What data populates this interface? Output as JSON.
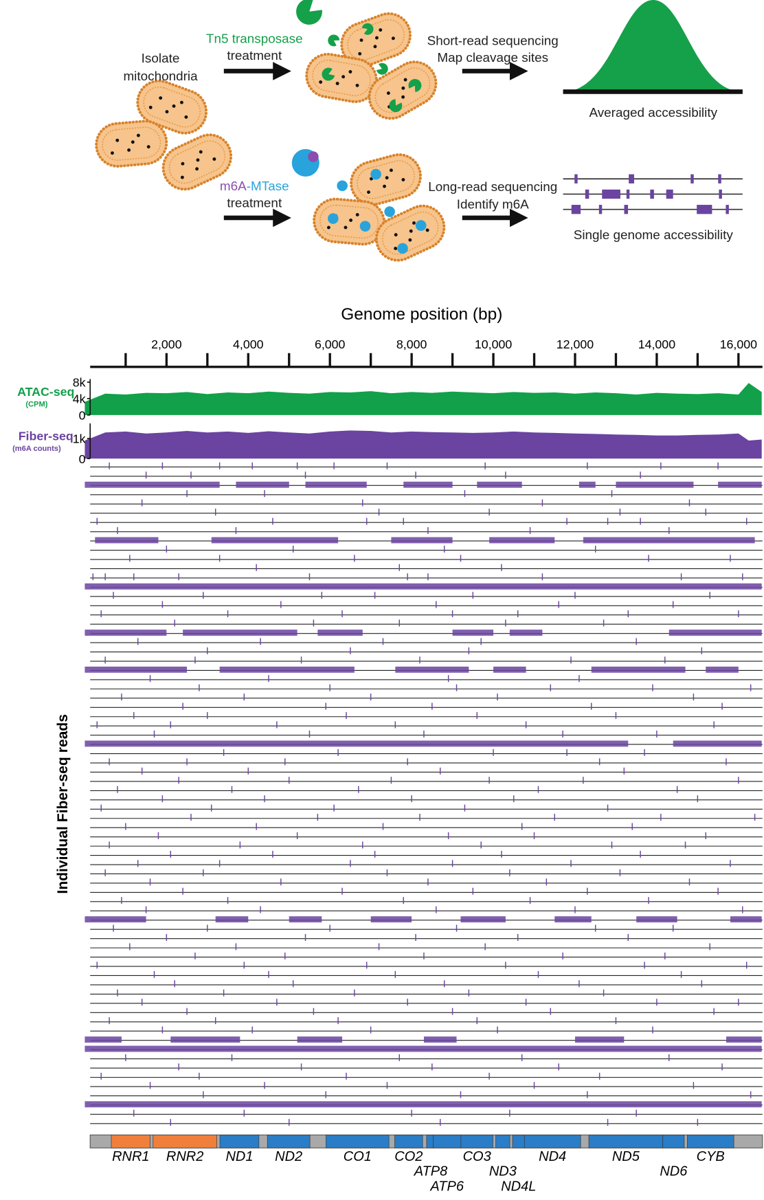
{
  "diagram": {
    "isolate": [
      "Isolate",
      "mitochondria"
    ],
    "tn5": "Tn5 transposase",
    "tn5_treatment": "treatment",
    "short_read": [
      "Short-read sequencing",
      "Map cleavage sites"
    ],
    "averaged": "Averaged accessibility",
    "mtase": [
      "m6A",
      "-MTase"
    ],
    "mtase_treatment": "treatment",
    "long_read": [
      "Long-read sequencing",
      "Identify m6A"
    ],
    "single": "Single genome accessibility"
  },
  "chart_data": {
    "type": "genome-tracks",
    "title": "Genome position (bp)",
    "xlim": [
      0,
      16569
    ],
    "xticks": [
      {
        "value": 2000,
        "label": "2,000"
      },
      {
        "value": 4000,
        "label": "4,000"
      },
      {
        "value": 6000,
        "label": "6,000"
      },
      {
        "value": 8000,
        "label": "8,000"
      },
      {
        "value": 10000,
        "label": "10,000"
      },
      {
        "value": 12000,
        "label": "12,000"
      },
      {
        "value": 14000,
        "label": "14,000"
      },
      {
        "value": 16000,
        "label": "16,000"
      }
    ],
    "minor_xticks": [
      1000,
      3000,
      5000,
      7000,
      9000,
      11000,
      13000,
      15000
    ],
    "tracks": [
      {
        "name": "ATAC-seq",
        "unit": "(CPM)",
        "color": "#12a04a",
        "ylim": [
          0,
          8000
        ],
        "yticks": [
          {
            "value": 8000,
            "label": "8k"
          },
          {
            "value": 4000,
            "label": "4k"
          },
          0
        ],
        "x": [
          0,
          500,
          1000,
          1500,
          2000,
          2500,
          3000,
          3500,
          4000,
          4500,
          5000,
          5500,
          6000,
          6500,
          7000,
          7500,
          8000,
          8500,
          9000,
          9500,
          10000,
          10500,
          11000,
          11500,
          12000,
          12500,
          13000,
          13500,
          14000,
          14500,
          15000,
          15500,
          16000,
          16250,
          16569
        ],
        "values": [
          3200,
          5200,
          5000,
          5400,
          5300,
          5600,
          5100,
          5500,
          5300,
          5700,
          5400,
          5200,
          5600,
          5500,
          5800,
          5300,
          5600,
          5400,
          5700,
          5500,
          5300,
          5600,
          5400,
          5500,
          5200,
          5500,
          5300,
          5000,
          5400,
          5200,
          5100,
          5300,
          5000,
          7800,
          5600
        ]
      },
      {
        "name": "Fiber-seq",
        "unit": "(m6A counts)",
        "color": "#6a44a0",
        "ylim": [
          0,
          1600
        ],
        "yticks": [
          {
            "value": 1000,
            "label": "1k"
          },
          0
        ],
        "x": [
          0,
          500,
          1000,
          1500,
          2000,
          2500,
          3000,
          3500,
          4000,
          4500,
          5000,
          5500,
          6000,
          6500,
          7000,
          7500,
          8000,
          8500,
          9000,
          9500,
          10000,
          10500,
          11000,
          11500,
          12000,
          12500,
          13000,
          13500,
          14000,
          14500,
          15000,
          15500,
          16000,
          16250,
          16569
        ],
        "values": [
          900,
          1300,
          1350,
          1250,
          1300,
          1380,
          1300,
          1350,
          1280,
          1360,
          1300,
          1250,
          1350,
          1400,
          1380,
          1300,
          1350,
          1320,
          1300,
          1280,
          1300,
          1350,
          1300,
          1280,
          1250,
          1230,
          1200,
          1180,
          1150,
          1150,
          1180,
          1200,
          1250,
          900,
          950
        ]
      }
    ],
    "reads_label": "Individual Fiber-seq reads",
    "reads_color": "#6a44a0",
    "reads": [
      {
        "sites": [
          600,
          1900,
          3300,
          4100,
          5200,
          6100,
          7400,
          9800,
          12300,
          14100,
          15500
        ]
      },
      {
        "sites": [
          1500,
          2600,
          5400,
          8100,
          10300,
          13600
        ]
      },
      {
        "spans": [
          [
            0,
            3300
          ],
          [
            3700,
            5000
          ],
          [
            5400,
            6900
          ],
          [
            7800,
            9000
          ],
          [
            9600,
            10700
          ],
          [
            12100,
            12500
          ],
          [
            13000,
            14900
          ],
          [
            15500,
            16569
          ]
        ]
      },
      {
        "sites": [
          2500,
          4400,
          9300,
          12900
        ]
      },
      {
        "sites": [
          1400,
          6800,
          11200,
          14800
        ]
      },
      {
        "sites": [
          3200,
          7200,
          9900,
          13100,
          15200
        ]
      },
      {
        "sites": [
          300,
          4600,
          6900,
          7800,
          11800,
          12800,
          13600,
          16200
        ]
      },
      {
        "sites": [
          800,
          3700,
          8400,
          10900,
          14300
        ]
      },
      {
        "spans": [
          [
            250,
            1800
          ],
          [
            3100,
            6200
          ],
          [
            7500,
            9000
          ],
          [
            9900,
            11500
          ],
          [
            12200,
            16400
          ]
        ]
      },
      {
        "sites": [
          2000,
          5100,
          8800,
          12500
        ]
      },
      {
        "sites": [
          1100,
          3300,
          6600,
          9200,
          13800,
          15800
        ]
      },
      {
        "sites": [
          4200,
          7700,
          10200
        ]
      },
      {
        "sites": [
          200,
          500,
          1200,
          2300,
          5500,
          7900,
          8400,
          11200,
          14600,
          16100
        ]
      },
      {
        "spans": [
          [
            0,
            16569
          ]
        ]
      },
      {
        "sites": [
          700,
          2900,
          5800,
          7100,
          9500,
          12000,
          15300
        ]
      },
      {
        "sites": [
          1900,
          4800,
          8600,
          11600,
          14400
        ]
      },
      {
        "sites": [
          400,
          3500,
          6300,
          9000,
          10600,
          13300,
          16000
        ]
      },
      {
        "sites": [
          2200,
          5600,
          7700,
          10300,
          12700
        ]
      },
      {
        "spans": [
          [
            0,
            2000
          ],
          [
            2400,
            5200
          ],
          [
            5700,
            6800
          ],
          [
            9000,
            10000
          ],
          [
            10400,
            11200
          ],
          [
            14300,
            16569
          ]
        ]
      },
      {
        "sites": [
          1300,
          4300,
          7300,
          9700,
          13500
        ]
      },
      {
        "sites": [
          3000,
          6500,
          9400,
          15100
        ]
      },
      {
        "sites": [
          500,
          2700,
          5300,
          8200,
          11900,
          14200
        ]
      },
      {
        "spans": [
          [
            0,
            2500
          ],
          [
            3300,
            6600
          ],
          [
            7600,
            9400
          ],
          [
            10000,
            10800
          ],
          [
            12400,
            14700
          ],
          [
            15200,
            16000
          ]
        ]
      },
      {
        "sites": [
          1600,
          4500,
          8900,
          12100
        ]
      },
      {
        "sites": [
          2800,
          6000,
          9100,
          11400,
          13900,
          16300
        ]
      },
      {
        "sites": [
          900,
          3900,
          7000,
          10100,
          14900
        ]
      },
      {
        "sites": [
          2400,
          5900,
          8500,
          12400,
          15600
        ]
      },
      {
        "sites": [
          1200,
          3000,
          6400,
          9600,
          13000
        ]
      },
      {
        "sites": [
          300,
          2100,
          4700,
          7600,
          10800,
          15400
        ]
      },
      {
        "sites": [
          1700,
          5500,
          8300,
          11700,
          14000
        ]
      },
      {
        "spans": [
          [
            0,
            13300
          ],
          [
            14400,
            16569
          ]
        ]
      },
      {
        "sites": [
          3400,
          6200,
          10000,
          11800,
          13700
        ]
      },
      {
        "sites": [
          600,
          2500,
          4900,
          7900,
          12600,
          15700
        ]
      },
      {
        "sites": [
          1400,
          4000,
          8700,
          13200
        ]
      },
      {
        "sites": [
          2300,
          5000,
          7500,
          9900,
          12200,
          16000
        ]
      },
      {
        "sites": [
          800,
          3600,
          6700,
          11100,
          14500
        ]
      },
      {
        "sites": [
          1900,
          4400,
          8000,
          10500,
          15000
        ]
      },
      {
        "sites": [
          400,
          3100,
          6100,
          9300,
          12800
        ]
      },
      {
        "sites": [
          2600,
          5700,
          8200,
          11500,
          14100,
          16400
        ]
      },
      {
        "sites": [
          1000,
          4200,
          7300,
          10700,
          13400
        ]
      },
      {
        "sites": [
          1800,
          5200,
          8900,
          11000,
          15200
        ]
      },
      {
        "sites": [
          600,
          3800,
          6800,
          9700,
          12900,
          14700
        ]
      },
      {
        "sites": [
          2100,
          4600,
          7100,
          10200,
          13600
        ]
      },
      {
        "sites": [
          1300,
          3300,
          6500,
          9000,
          11900,
          15800
        ]
      },
      {
        "sites": [
          500,
          2900,
          7400,
          10400,
          13100
        ]
      },
      {
        "sites": [
          1600,
          4800,
          8400,
          11300,
          14800
        ]
      },
      {
        "sites": [
          2400,
          6300,
          9500,
          12300,
          15500
        ]
      },
      {
        "sites": [
          900,
          3500,
          7800,
          10900,
          13800
        ]
      },
      {
        "sites": [
          1500,
          4300,
          8600,
          12000,
          16100
        ]
      },
      {
        "spans": [
          [
            0,
            1500
          ],
          [
            3200,
            4000
          ],
          [
            5000,
            5800
          ],
          [
            7000,
            8000
          ],
          [
            9200,
            10300
          ],
          [
            11500,
            12400
          ],
          [
            13500,
            14500
          ],
          [
            15800,
            16569
          ]
        ]
      },
      {
        "sites": [
          700,
          3000,
          6000,
          9100,
          12500,
          14400
        ]
      },
      {
        "sites": [
          2000,
          5400,
          8100,
          10600,
          13300
        ]
      },
      {
        "sites": [
          1100,
          3700,
          7200,
          9800,
          15300
        ]
      },
      {
        "sites": [
          2700,
          4900,
          8300,
          11700,
          14200
        ]
      },
      {
        "sites": [
          300,
          3900,
          6900,
          10300,
          13700,
          16200
        ]
      },
      {
        "sites": [
          1700,
          4500,
          7600,
          11100,
          14600
        ]
      },
      {
        "sites": [
          2200,
          5100,
          8800,
          12100,
          15100
        ]
      },
      {
        "sites": [
          800,
          3400,
          6600,
          9400,
          12700
        ]
      },
      {
        "sites": [
          1400,
          4700,
          7900,
          10800,
          14000,
          16000
        ]
      },
      {
        "sites": [
          2500,
          5600,
          9000,
          11400,
          15400
        ]
      },
      {
        "sites": [
          600,
          3200,
          6200,
          9600,
          13000
        ]
      },
      {
        "sites": [
          1900,
          4100,
          7000,
          10100,
          13900
        ]
      },
      {
        "spans": [
          [
            0,
            900
          ],
          [
            2100,
            3800
          ],
          [
            5200,
            6300
          ],
          [
            8300,
            9100
          ],
          [
            12000,
            13200
          ],
          [
            15700,
            16569
          ]
        ]
      },
      {
        "spans": [
          [
            0,
            16569
          ]
        ]
      },
      {
        "sites": [
          1000,
          3600,
          7700,
          10700,
          14300
        ]
      },
      {
        "sites": [
          2300,
          5300,
          8500,
          11600,
          15600
        ]
      },
      {
        "sites": [
          400,
          2800,
          6400,
          9900,
          12600
        ]
      },
      {
        "sites": [
          1600,
          4400,
          7400,
          11000,
          14900
        ]
      },
      {
        "sites": [
          2900,
          5900,
          9200,
          12300,
          16300
        ]
      },
      {
        "spans": [
          [
            0,
            16569
          ]
        ]
      },
      {
        "sites": [
          1200,
          3900,
          8000,
          10400,
          13500
        ]
      },
      {
        "sites": [
          2100,
          5000,
          8700,
          12800,
          15000
        ]
      }
    ],
    "genes": [
      {
        "name": "RNR1",
        "start": 648,
        "end": 1601,
        "color": "#f07f3c"
      },
      {
        "name": "RNR2",
        "start": 1671,
        "end": 3229,
        "color": "#f07f3c"
      },
      {
        "name": "ND1",
        "start": 3307,
        "end": 4262,
        "color": "#2a7dc6"
      },
      {
        "name": "ND2",
        "start": 4470,
        "end": 5511,
        "color": "#2a7dc6"
      },
      {
        "name": "CO1",
        "start": 5904,
        "end": 7445,
        "color": "#2a7dc6"
      },
      {
        "name": "CO2",
        "start": 7586,
        "end": 8269,
        "color": "#2a7dc6"
      },
      {
        "name": "ATP8",
        "start": 8366,
        "end": 8572,
        "color": "#2a7dc6"
      },
      {
        "name": "ATP6",
        "start": 8527,
        "end": 9207,
        "color": "#2a7dc6"
      },
      {
        "name": "CO3",
        "start": 9207,
        "end": 9990,
        "color": "#2a7dc6"
      },
      {
        "name": "ND3",
        "start": 10059,
        "end": 10404,
        "color": "#2a7dc6"
      },
      {
        "name": "ND4L",
        "start": 10470,
        "end": 10766,
        "color": "#2a7dc6"
      },
      {
        "name": "ND4",
        "start": 10760,
        "end": 12137,
        "color": "#2a7dc6"
      },
      {
        "name": "ND5",
        "start": 12337,
        "end": 14148,
        "color": "#2a7dc6"
      },
      {
        "name": "ND6",
        "start": 14149,
        "end": 14673,
        "color": "#2a7dc6"
      },
      {
        "name": "CYB",
        "start": 14747,
        "end": 15887,
        "color": "#2a7dc6"
      }
    ]
  }
}
